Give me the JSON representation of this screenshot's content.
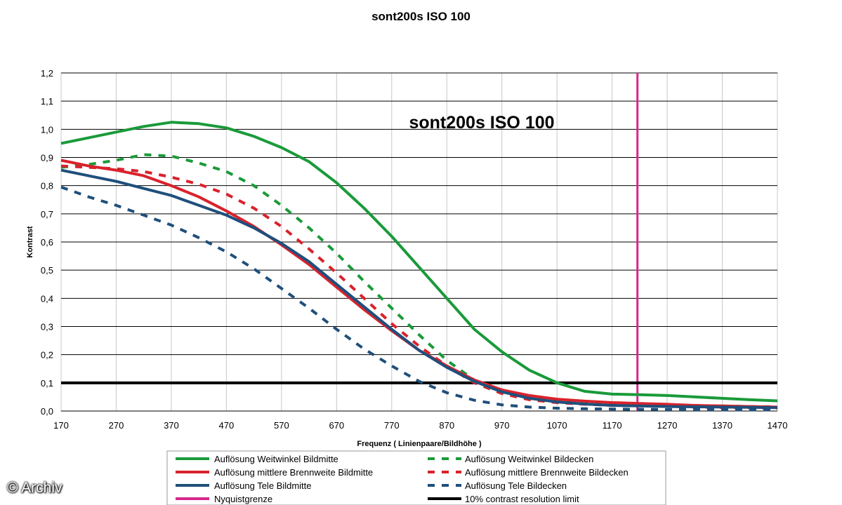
{
  "page_title": "sont200s ISO 100",
  "watermark": "© Archiv",
  "colors": {
    "green": "#1a9a3a",
    "red": "#d9222c",
    "blue": "#1f4f7c",
    "magenta": "#d6288e",
    "black": "#000000",
    "grid": "#000000"
  },
  "chart_data": {
    "type": "line",
    "title": "sont200s ISO 100",
    "inner_title": "sont200s ISO 100",
    "xlabel": "Frequenz ( Linienpaare/Bildhöhe )",
    "ylabel": "Kontrast",
    "xlim": [
      170,
      1470
    ],
    "ylim": [
      0,
      1.2
    ],
    "x_ticks": [
      "170",
      "270",
      "370",
      "470",
      "570",
      "670",
      "770",
      "870",
      "970",
      "1070",
      "1170",
      "1270",
      "1370",
      "1470"
    ],
    "y_ticks": [
      "0,0",
      "0,1",
      "0,2",
      "0,3",
      "0,4",
      "0,5",
      "0,6",
      "0,7",
      "0,8",
      "0,9",
      "1,0",
      "1,1",
      "1,2"
    ],
    "grid": true,
    "legend_position": "bottom",
    "series": [
      {
        "name": "Auflösung Weitwinkel Bildmitte",
        "color": "green",
        "style": "solid",
        "x": [
          170,
          220,
          270,
          320,
          370,
          420,
          470,
          520,
          570,
          620,
          670,
          720,
          770,
          820,
          870,
          920,
          970,
          1020,
          1070,
          1120,
          1170,
          1220,
          1270,
          1320,
          1370,
          1420,
          1470
        ],
        "y": [
          0.95,
          0.97,
          0.99,
          1.01,
          1.025,
          1.02,
          1.005,
          0.975,
          0.935,
          0.885,
          0.81,
          0.72,
          0.62,
          0.51,
          0.4,
          0.29,
          0.21,
          0.145,
          0.1,
          0.07,
          0.06,
          0.058,
          0.055,
          0.05,
          0.045,
          0.04,
          0.036
        ]
      },
      {
        "name": "Auflösung Weitwinkel Bildecken",
        "color": "green",
        "style": "dashed",
        "x": [
          170,
          220,
          270,
          320,
          370,
          420,
          470,
          520,
          570,
          620,
          670,
          720,
          770,
          820,
          870,
          920,
          970,
          1020,
          1070,
          1120,
          1170,
          1220,
          1270,
          1320,
          1370,
          1420,
          1470
        ],
        "y": [
          0.865,
          0.875,
          0.89,
          0.91,
          0.905,
          0.88,
          0.85,
          0.8,
          0.73,
          0.65,
          0.56,
          0.46,
          0.365,
          0.27,
          0.18,
          0.11,
          0.07,
          0.045,
          0.035,
          0.03,
          0.027,
          0.025,
          0.022,
          0.02,
          0.018,
          0.016,
          0.015
        ]
      },
      {
        "name": "Auflösung mittlere Brennweite Bildmitte",
        "color": "red",
        "style": "solid",
        "x": [
          170,
          220,
          270,
          320,
          370,
          420,
          470,
          520,
          570,
          620,
          670,
          720,
          770,
          820,
          870,
          920,
          970,
          1020,
          1070,
          1120,
          1170,
          1220,
          1270,
          1320,
          1370,
          1420,
          1470
        ],
        "y": [
          0.89,
          0.87,
          0.855,
          0.835,
          0.8,
          0.76,
          0.71,
          0.655,
          0.59,
          0.52,
          0.44,
          0.36,
          0.285,
          0.215,
          0.16,
          0.11,
          0.075,
          0.055,
          0.042,
          0.035,
          0.03,
          0.027,
          0.024,
          0.02,
          0.018,
          0.016,
          0.014
        ]
      },
      {
        "name": "Auflösung mittlere Brennweite Bildecken",
        "color": "red",
        "style": "dashed",
        "x": [
          170,
          220,
          270,
          320,
          370,
          420,
          470,
          520,
          570,
          620,
          670,
          720,
          770,
          820,
          870,
          920,
          970,
          1020,
          1070,
          1120,
          1170,
          1220,
          1270,
          1320,
          1370,
          1420,
          1470
        ],
        "y": [
          0.87,
          0.865,
          0.86,
          0.85,
          0.83,
          0.805,
          0.77,
          0.72,
          0.655,
          0.575,
          0.49,
          0.4,
          0.31,
          0.23,
          0.16,
          0.1,
          0.062,
          0.04,
          0.03,
          0.024,
          0.02,
          0.018,
          0.016,
          0.014,
          0.012,
          0.011,
          0.01
        ]
      },
      {
        "name": "Auflösung Tele Bildmitte",
        "color": "blue",
        "style": "solid",
        "x": [
          170,
          220,
          270,
          320,
          370,
          420,
          470,
          520,
          570,
          620,
          670,
          720,
          770,
          820,
          870,
          920,
          970,
          1020,
          1070,
          1120,
          1170,
          1220,
          1270,
          1320,
          1370,
          1420,
          1470
        ],
        "y": [
          0.855,
          0.835,
          0.815,
          0.79,
          0.765,
          0.73,
          0.695,
          0.65,
          0.595,
          0.53,
          0.45,
          0.37,
          0.29,
          0.215,
          0.155,
          0.105,
          0.068,
          0.045,
          0.032,
          0.025,
          0.02,
          0.018,
          0.016,
          0.015,
          0.014,
          0.013,
          0.012
        ]
      },
      {
        "name": "Auflösung Tele Bildecken",
        "color": "blue",
        "style": "dashed",
        "x": [
          170,
          220,
          270,
          320,
          370,
          420,
          470,
          520,
          570,
          620,
          670,
          720,
          770,
          820,
          870,
          920,
          970,
          1020,
          1070,
          1120,
          1170,
          1220,
          1270,
          1320,
          1370,
          1420,
          1470
        ],
        "y": [
          0.795,
          0.76,
          0.73,
          0.695,
          0.66,
          0.615,
          0.565,
          0.505,
          0.435,
          0.365,
          0.29,
          0.22,
          0.16,
          0.105,
          0.065,
          0.038,
          0.022,
          0.014,
          0.01,
          0.008,
          0.007,
          0.006,
          0.005,
          0.005,
          0.004,
          0.004,
          0.004
        ]
      }
    ],
    "reference_lines": [
      {
        "name": "Nyquistgrenze",
        "color": "magenta",
        "orientation": "vertical",
        "value": 1216
      },
      {
        "name": "10% contrast resolution limit",
        "color": "black",
        "orientation": "horizontal",
        "value": 0.1
      }
    ]
  }
}
